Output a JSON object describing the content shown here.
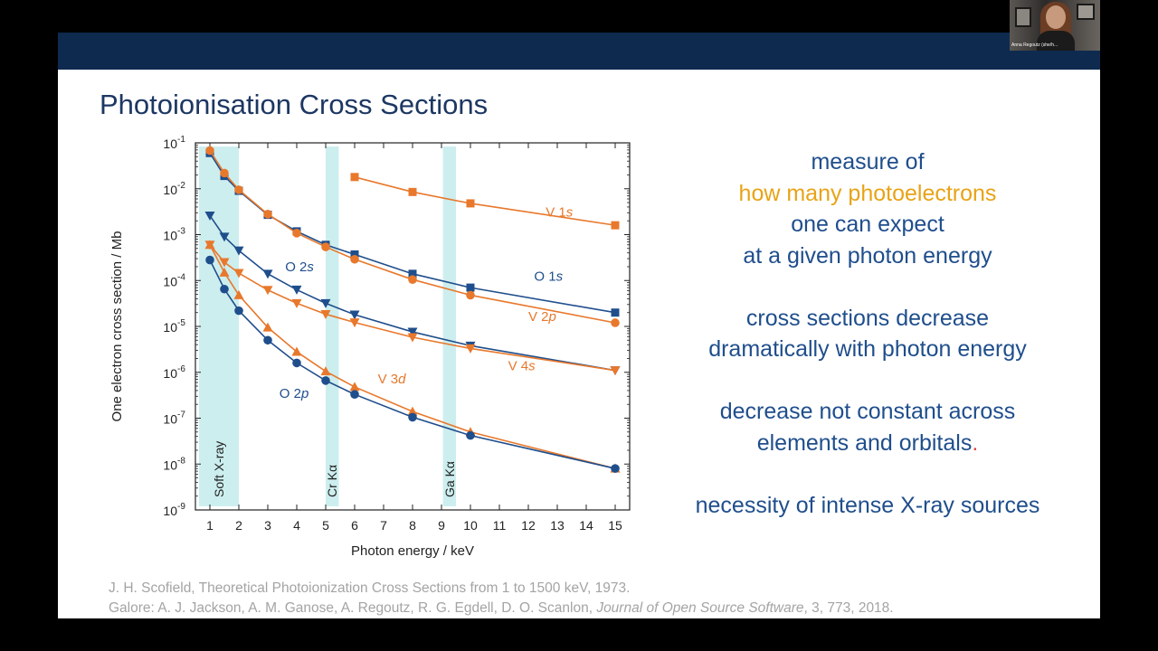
{
  "slide": {
    "title": "Photoionisation Cross Sections",
    "bullets": [
      [
        "measure of",
        "how many photoelectrons",
        "one can expect",
        "at a given photon energy"
      ],
      [
        "cross sections decrease",
        "dramatically with photon energy"
      ],
      [
        "decrease not constant across",
        "elements and orbitals",
        "."
      ],
      [
        "necessity of intense X-ray sources"
      ]
    ],
    "references": {
      "line1": "J. H. Scofield, Theoretical Photoionization Cross Sections from 1 to 1500 keV, 1973.",
      "line2_prefix": "Galore: A. J. Jackson, A. M. Ganose, A. Regoutz, R. G. Egdell, D. O. Scanlon, ",
      "line2_journal": "Journal of Open Source Software",
      "line2_suffix": ", 3, 773, 2018."
    }
  },
  "webcam": {
    "name": "Anna Regoutz (she/h..."
  },
  "colors": {
    "header": "#0e2a4f",
    "title": "#1d3763",
    "text": "#1f4e8c",
    "highlight": "#e8a317",
    "orange_series": "#e8782c",
    "blue_series": "#1f4e8c",
    "band": "#cdeeee"
  },
  "chart_data": {
    "type": "line",
    "xlabel": "Photon energy / keV",
    "ylabel": "One electron cross section / Mb",
    "xlim": [
      0.5,
      15.5
    ],
    "ylim": [
      1e-09,
      0.1
    ],
    "yscale": "log",
    "x_ticks": [
      1,
      2,
      3,
      4,
      5,
      6,
      7,
      8,
      9,
      10,
      11,
      12,
      13,
      14,
      15
    ],
    "y_ticks": [
      {
        "mant": "10",
        "exp": "-1"
      },
      {
        "mant": "10",
        "exp": "-2"
      },
      {
        "mant": "10",
        "exp": "-3"
      },
      {
        "mant": "10",
        "exp": "-4"
      },
      {
        "mant": "10",
        "exp": "-5"
      },
      {
        "mant": "10",
        "exp": "-6"
      },
      {
        "mant": "10",
        "exp": "-7"
      },
      {
        "mant": "10",
        "exp": "-8"
      },
      {
        "mant": "10",
        "exp": "-9"
      }
    ],
    "bands": [
      {
        "label": "Soft X-ray",
        "from": 1.0,
        "to": 2.0
      },
      {
        "label": "Cr Kα",
        "from": 5.0,
        "to": 5.45
      },
      {
        "label": "Ga Kα",
        "from": 9.05,
        "to": 9.5
      }
    ],
    "series": [
      {
        "name": "V 1s",
        "label_main": "V 1",
        "label_orb": "s",
        "label_at": [
          12.6,
          0.0025
        ],
        "color": "orange",
        "marker": "square",
        "x": [
          6,
          8,
          10,
          15
        ],
        "y": [
          0.018,
          0.0085,
          0.0048,
          0.0016
        ]
      },
      {
        "name": "O 1s",
        "label_main": "O 1",
        "label_orb": "s",
        "label_at": [
          12.2,
          0.0001
        ],
        "color": "blue",
        "marker": "square",
        "x": [
          1,
          1.5,
          2,
          3,
          4,
          5,
          6,
          8,
          10,
          15
        ],
        "y": [
          0.06,
          0.019,
          0.009,
          0.0027,
          0.00118,
          0.0006,
          0.00037,
          0.00014,
          7e-05,
          2e-05
        ]
      },
      {
        "name": "V 2p",
        "label_main": "V 2",
        "label_orb": "p",
        "label_at": [
          12.0,
          1.3e-05
        ],
        "color": "orange",
        "marker": "circle",
        "x": [
          1,
          1.5,
          2,
          3,
          4,
          5,
          6,
          8,
          10,
          15
        ],
        "y": [
          0.068,
          0.022,
          0.0095,
          0.0028,
          0.00108,
          0.00054,
          0.00029,
          0.000105,
          4.8e-05,
          1.2e-05
        ]
      },
      {
        "name": "O 2s",
        "label_main": "O 2",
        "label_orb": "s",
        "label_at": [
          3.6,
          0.00016
        ],
        "color": "blue",
        "marker": "triangle-down",
        "x": [
          1,
          1.5,
          2,
          3,
          4,
          5,
          6,
          8,
          10,
          15
        ],
        "y": [
          0.0026,
          0.0009,
          0.00045,
          0.00014,
          6.3e-05,
          3.2e-05,
          1.8e-05,
          7.6e-06,
          3.8e-06,
          1.1e-06
        ]
      },
      {
        "name": "V 4s",
        "label_main": "V 4",
        "label_orb": "s",
        "label_at": [
          11.3,
          1.1e-06
        ],
        "color": "orange",
        "marker": "triangle-down",
        "x": [
          1,
          1.5,
          2,
          3,
          4,
          5,
          6,
          8,
          10,
          15
        ],
        "y": [
          0.0006,
          0.00025,
          0.000145,
          6.2e-05,
          3.2e-05,
          1.85e-05,
          1.22e-05,
          5.8e-06,
          3.3e-06,
          1.1e-06
        ]
      },
      {
        "name": "V 3d",
        "label_main": "V 3",
        "label_orb": "d",
        "label_at": [
          6.8,
          5.8e-07
        ],
        "color": "orange",
        "marker": "triangle-up",
        "x": [
          1,
          1.5,
          2,
          3,
          4,
          5,
          6,
          8,
          10,
          15
        ],
        "y": [
          0.0006,
          0.00015,
          4.8e-05,
          9.5e-06,
          2.8e-06,
          1.05e-06,
          4.8e-07,
          1.4e-07,
          5e-08,
          8e-09
        ]
      },
      {
        "name": "O 2p",
        "label_main": "O 2",
        "label_orb": "p",
        "label_at": [
          3.4,
          2.8e-07
        ],
        "color": "blue",
        "marker": "circle",
        "x": [
          1,
          1.5,
          2,
          3,
          4,
          5,
          6,
          8,
          10,
          15
        ],
        "y": [
          0.00028,
          6.5e-05,
          2.2e-05,
          5e-06,
          1.6e-06,
          6.6e-07,
          3.3e-07,
          1.05e-07,
          4.2e-08,
          8e-09
        ]
      }
    ]
  }
}
